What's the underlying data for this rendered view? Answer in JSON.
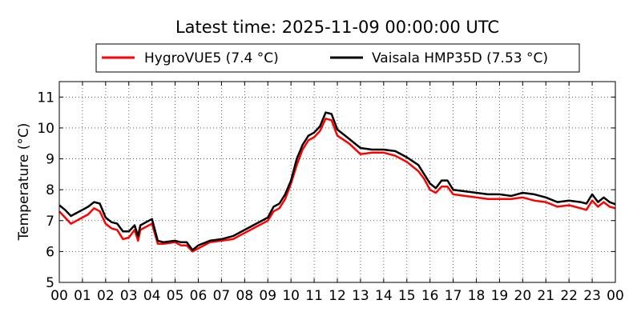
{
  "chart_data": {
    "type": "line",
    "title": "Latest time: 2025-11-09 00:00:00 UTC",
    "xlabel": "",
    "ylabel": "Temperature (°C)",
    "xlim": [
      0,
      24
    ],
    "ylim": [
      5,
      11.5
    ],
    "x_ticks": [
      "00",
      "01",
      "02",
      "03",
      "04",
      "05",
      "06",
      "07",
      "08",
      "09",
      "10",
      "11",
      "12",
      "13",
      "14",
      "15",
      "16",
      "17",
      "18",
      "19",
      "20",
      "21",
      "22",
      "23",
      "00"
    ],
    "y_ticks": [
      5,
      6,
      7,
      8,
      9,
      10,
      11
    ],
    "grid": true,
    "legend_position": "top-center",
    "series": [
      {
        "name": "HygroVUE5 (7.4 °C)",
        "color": "#ff0000",
        "x": [
          0,
          0.25,
          0.5,
          0.75,
          1,
          1.25,
          1.5,
          1.75,
          2,
          2.25,
          2.5,
          2.75,
          3,
          3.25,
          3.4,
          3.5,
          3.75,
          4,
          4.25,
          4.5,
          5,
          5.25,
          5.5,
          5.75,
          6,
          6.5,
          7,
          7.5,
          8,
          8.5,
          9,
          9.25,
          9.5,
          9.75,
          10,
          10.25,
          10.5,
          10.75,
          11,
          11.25,
          11.5,
          11.75,
          12,
          12.5,
          13,
          13.5,
          14,
          14.5,
          15,
          15.5,
          15.75,
          16,
          16.25,
          16.5,
          16.75,
          17,
          17.5,
          18,
          18.5,
          19,
          19.5,
          20,
          20.5,
          21,
          21.5,
          22,
          22.5,
          22.75,
          23,
          23.25,
          23.5,
          23.75,
          24
        ],
        "y": [
          7.3,
          7.1,
          6.9,
          7.0,
          7.1,
          7.2,
          7.4,
          7.3,
          6.9,
          6.75,
          6.7,
          6.4,
          6.45,
          6.7,
          6.35,
          6.7,
          6.8,
          6.9,
          6.25,
          6.25,
          6.3,
          6.2,
          6.2,
          6.0,
          6.1,
          6.3,
          6.35,
          6.4,
          6.6,
          6.8,
          7.0,
          7.3,
          7.4,
          7.7,
          8.2,
          8.8,
          9.3,
          9.6,
          9.7,
          9.9,
          10.3,
          10.25,
          9.75,
          9.5,
          9.15,
          9.2,
          9.2,
          9.1,
          8.9,
          8.6,
          8.35,
          8.0,
          7.9,
          8.1,
          8.1,
          7.85,
          7.8,
          7.75,
          7.7,
          7.7,
          7.7,
          7.75,
          7.65,
          7.6,
          7.45,
          7.5,
          7.4,
          7.35,
          7.65,
          7.45,
          7.6,
          7.45,
          7.4
        ]
      },
      {
        "name": "Vaisala HMP35D (7.53 °C)",
        "color": "#000000",
        "x": [
          0,
          0.25,
          0.5,
          0.75,
          1,
          1.25,
          1.5,
          1.75,
          2,
          2.25,
          2.5,
          2.75,
          3,
          3.25,
          3.4,
          3.5,
          3.75,
          4,
          4.25,
          4.5,
          5,
          5.25,
          5.5,
          5.75,
          6,
          6.5,
          7,
          7.5,
          8,
          8.5,
          9,
          9.25,
          9.5,
          9.75,
          10,
          10.25,
          10.5,
          10.75,
          11,
          11.25,
          11.5,
          11.75,
          12,
          12.5,
          13,
          13.5,
          14,
          14.5,
          15,
          15.5,
          15.75,
          16,
          16.25,
          16.5,
          16.75,
          17,
          17.5,
          18,
          18.5,
          19,
          19.5,
          20,
          20.5,
          21,
          21.5,
          22,
          22.5,
          22.75,
          23,
          23.25,
          23.5,
          23.75,
          24
        ],
        "y": [
          7.5,
          7.35,
          7.15,
          7.25,
          7.35,
          7.45,
          7.6,
          7.55,
          7.1,
          6.95,
          6.9,
          6.65,
          6.65,
          6.85,
          6.5,
          6.85,
          6.95,
          7.05,
          6.35,
          6.3,
          6.35,
          6.3,
          6.3,
          6.05,
          6.2,
          6.35,
          6.4,
          6.5,
          6.7,
          6.9,
          7.1,
          7.45,
          7.55,
          7.85,
          8.3,
          9.0,
          9.45,
          9.75,
          9.85,
          10.05,
          10.5,
          10.45,
          9.95,
          9.65,
          9.35,
          9.3,
          9.3,
          9.25,
          9.05,
          8.8,
          8.5,
          8.2,
          8.05,
          8.3,
          8.3,
          8.0,
          7.95,
          7.9,
          7.85,
          7.85,
          7.8,
          7.9,
          7.85,
          7.75,
          7.6,
          7.65,
          7.6,
          7.55,
          7.85,
          7.6,
          7.75,
          7.6,
          7.53
        ]
      }
    ]
  }
}
